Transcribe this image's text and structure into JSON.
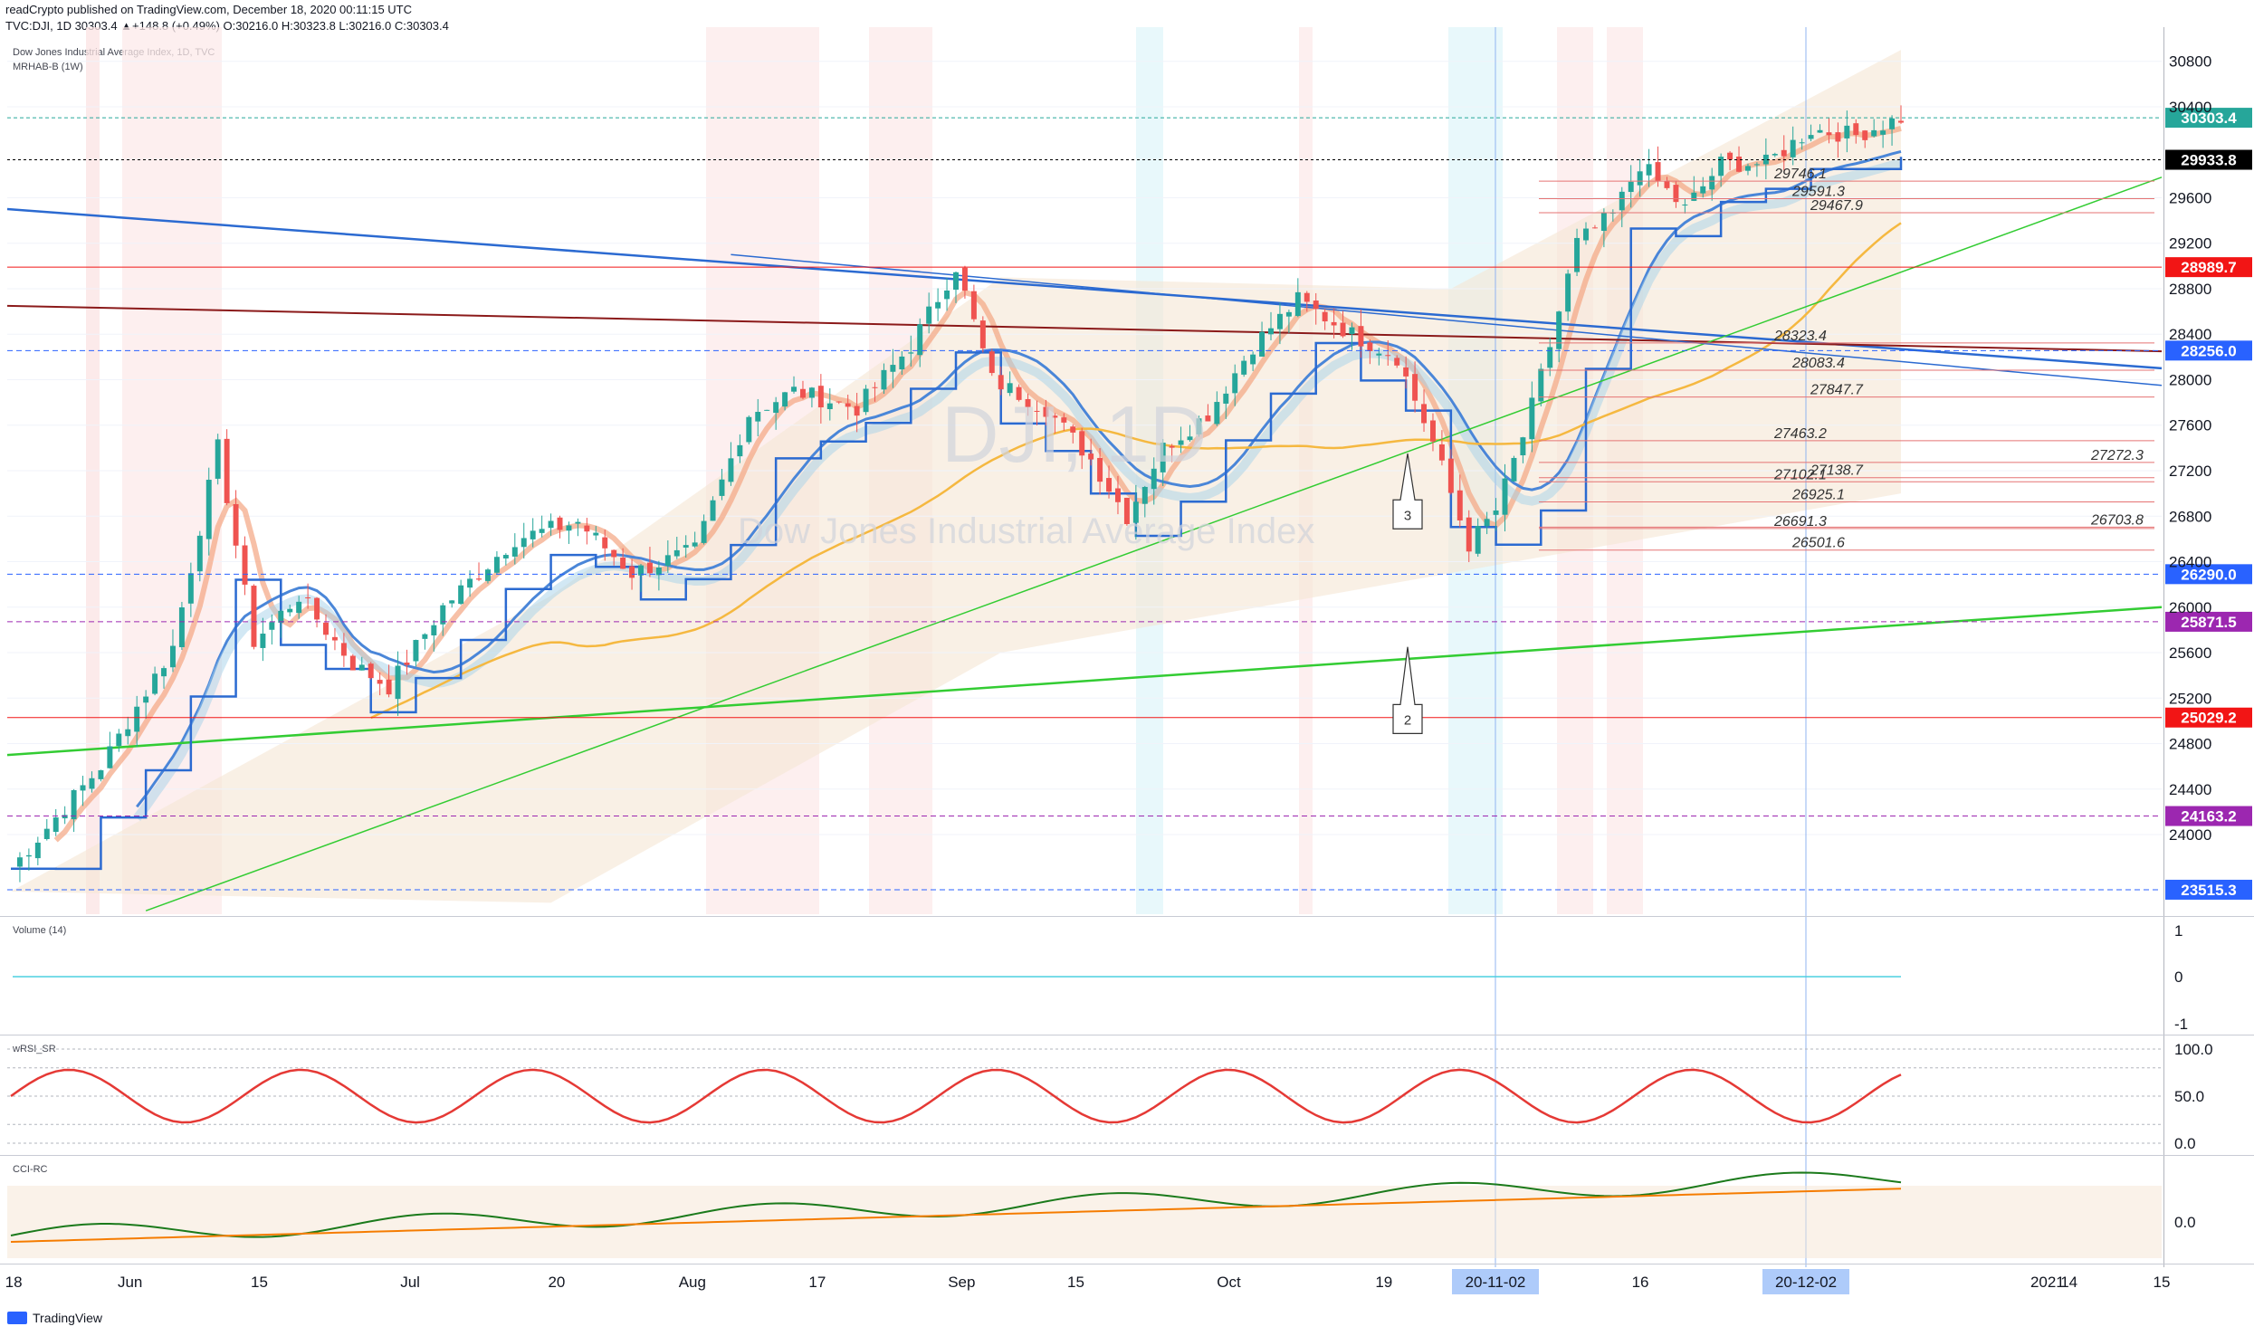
{
  "header": {
    "line1": "readCrypto published on TradingView.com, December 18, 2020 00:11:15 UTC",
    "line2": "TVC:DJI, 1D 30303.4 ▲+148.8 (+0.49%) O:30216.0 H:30323.8 L:30216.0 C:30303.4"
  },
  "chart_title": "Dow Jones Industrial Average Index, 1D, TVC",
  "indicator_label": "MRHAB-B (1W)",
  "watermark": {
    "symbol": "DJI, 1D",
    "name": "Dow Jones Industrial Average Index"
  },
  "footer": {
    "brand": "TradingView"
  },
  "colors": {
    "up": "#26a69a",
    "down": "#ef5350",
    "blue": "#4a86d8",
    "green": "#33cc33",
    "darkred": "#8b1a1a",
    "orange": "#f5b840",
    "purple": "#9b59b6"
  },
  "chart_data": [
    {
      "type": "candlestick",
      "name": "main",
      "ylim": [
        23300,
        31100
      ],
      "y_ticks": [
        30800,
        30400,
        29600,
        29200,
        28800,
        28400,
        28000,
        27600,
        27200,
        26800,
        26400,
        26000,
        25600,
        25200,
        24800,
        24400,
        24000
      ],
      "price_labels": [
        {
          "value": 30303.4,
          "text": "30303.4",
          "bg": "#26a69a",
          "fg": "#ffffff"
        },
        {
          "value": 29933.8,
          "text": "29933.8",
          "bg": "#000000",
          "fg": "#ffffff"
        },
        {
          "value": 28989.7,
          "text": "28989.7",
          "bg": "#f21515",
          "fg": "#ffffff"
        },
        {
          "value": 28256.0,
          "text": "28256.0",
          "bg": "#2962ff",
          "fg": "#ffffff"
        },
        {
          "value": 26290.0,
          "text": "26290.0",
          "bg": "#2962ff",
          "fg": "#ffffff"
        },
        {
          "value": 25871.5,
          "text": "25871.5",
          "bg": "#9c27b0",
          "fg": "#ffffff"
        },
        {
          "value": 25029.2,
          "text": "25029.2",
          "bg": "#f21515",
          "fg": "#ffffff"
        },
        {
          "value": 24163.2,
          "text": "24163.2",
          "bg": "#9c27b0",
          "fg": "#ffffff"
        },
        {
          "value": 23515.3,
          "text": "23515.3",
          "bg": "#2962ff",
          "fg": "#ffffff"
        }
      ],
      "levels": [
        {
          "value": 29746.1,
          "text": "29746.1"
        },
        {
          "value": 29591.3,
          "text": "29591.3"
        },
        {
          "value": 29467.9,
          "text": "29467.9"
        },
        {
          "value": 28323.4,
          "text": "28323.4"
        },
        {
          "value": 28083.4,
          "text": "28083.4"
        },
        {
          "value": 27847.7,
          "text": "27847.7"
        },
        {
          "value": 27463.2,
          "text": "27463.2"
        },
        {
          "value": 27272.3,
          "text": "27272.3"
        },
        {
          "value": 27138.7,
          "text": "27138.7"
        },
        {
          "value": 27102.1,
          "text": "27102.1"
        },
        {
          "value": 26925.1,
          "text": "26925.1"
        },
        {
          "value": 26703.8,
          "text": "26703.8"
        },
        {
          "value": 26691.3,
          "text": "26691.3"
        },
        {
          "value": 26501.6,
          "text": "26501.6"
        }
      ],
      "callouts": [
        {
          "text": "3"
        },
        {
          "text": "2"
        }
      ],
      "close_anchors": [
        {
          "i": 0,
          "c": 23700
        },
        {
          "i": 10,
          "c": 24600
        },
        {
          "i": 18,
          "c": 25650
        },
        {
          "i": 23,
          "c": 27400
        },
        {
          "i": 27,
          "c": 25700
        },
        {
          "i": 32,
          "c": 26100
        },
        {
          "i": 38,
          "c": 25500
        },
        {
          "i": 42,
          "c": 25300
        },
        {
          "i": 48,
          "c": 26000
        },
        {
          "i": 56,
          "c": 26600
        },
        {
          "i": 63,
          "c": 26750
        },
        {
          "i": 69,
          "c": 26300
        },
        {
          "i": 76,
          "c": 26500
        },
        {
          "i": 82,
          "c": 27700
        },
        {
          "i": 87,
          "c": 27900
        },
        {
          "i": 94,
          "c": 27750
        },
        {
          "i": 100,
          "c": 28300
        },
        {
          "i": 105,
          "c": 29000
        },
        {
          "i": 109,
          "c": 28000
        },
        {
          "i": 115,
          "c": 27750
        },
        {
          "i": 120,
          "c": 27300
        },
        {
          "i": 124,
          "c": 26800
        },
        {
          "i": 128,
          "c": 27400
        },
        {
          "i": 133,
          "c": 27700
        },
        {
          "i": 138,
          "c": 28300
        },
        {
          "i": 143,
          "c": 28700
        },
        {
          "i": 149,
          "c": 28400
        },
        {
          "i": 154,
          "c": 28200
        },
        {
          "i": 158,
          "c": 27450
        },
        {
          "i": 162,
          "c": 26550
        },
        {
          "i": 165,
          "c": 26850
        },
        {
          "i": 168,
          "c": 27500
        },
        {
          "i": 171,
          "c": 28300
        },
        {
          "i": 174,
          "c": 29200
        },
        {
          "i": 178,
          "c": 29450
        },
        {
          "i": 181,
          "c": 29900
        },
        {
          "i": 186,
          "c": 29500
        },
        {
          "i": 190,
          "c": 29900
        },
        {
          "i": 195,
          "c": 29900
        },
        {
          "i": 200,
          "c": 30200
        },
        {
          "i": 205,
          "c": 30150
        },
        {
          "i": 210,
          "c": 30303
        }
      ]
    },
    {
      "type": "area",
      "name": "Volume (14)",
      "y_ticks": [
        1,
        0,
        -1
      ],
      "values": [
        0
      ]
    },
    {
      "type": "oscillator",
      "name": "wRSI_SR",
      "y_ticks": [
        100.0,
        50.0,
        0.0
      ],
      "ylim": [
        0,
        100
      ]
    },
    {
      "type": "oscillator",
      "name": "CCI-RC",
      "y_ticks": [
        0.0
      ]
    }
  ],
  "x_ticks": [
    {
      "frac": 0.003,
      "label": "18"
    },
    {
      "frac": 0.057,
      "label": "Jun"
    },
    {
      "frac": 0.117,
      "label": "15"
    },
    {
      "frac": 0.187,
      "label": "Jul"
    },
    {
      "frac": 0.255,
      "label": "20"
    },
    {
      "frac": 0.318,
      "label": "Aug"
    },
    {
      "frac": 0.376,
      "label": "17"
    },
    {
      "frac": 0.443,
      "label": "Sep"
    },
    {
      "frac": 0.496,
      "label": "15"
    },
    {
      "frac": 0.567,
      "label": "Oct"
    },
    {
      "frac": 0.639,
      "label": "19"
    },
    {
      "frac": 0.758,
      "label": "16"
    },
    {
      "frac": 0.957,
      "label": "14"
    },
    {
      "frac": 0.947,
      "label": "2021"
    },
    {
      "frac": 1.0,
      "label": "15"
    }
  ],
  "x_highlight_labels": [
    {
      "label": "20-11-02"
    },
    {
      "label": "20-12-02"
    }
  ]
}
